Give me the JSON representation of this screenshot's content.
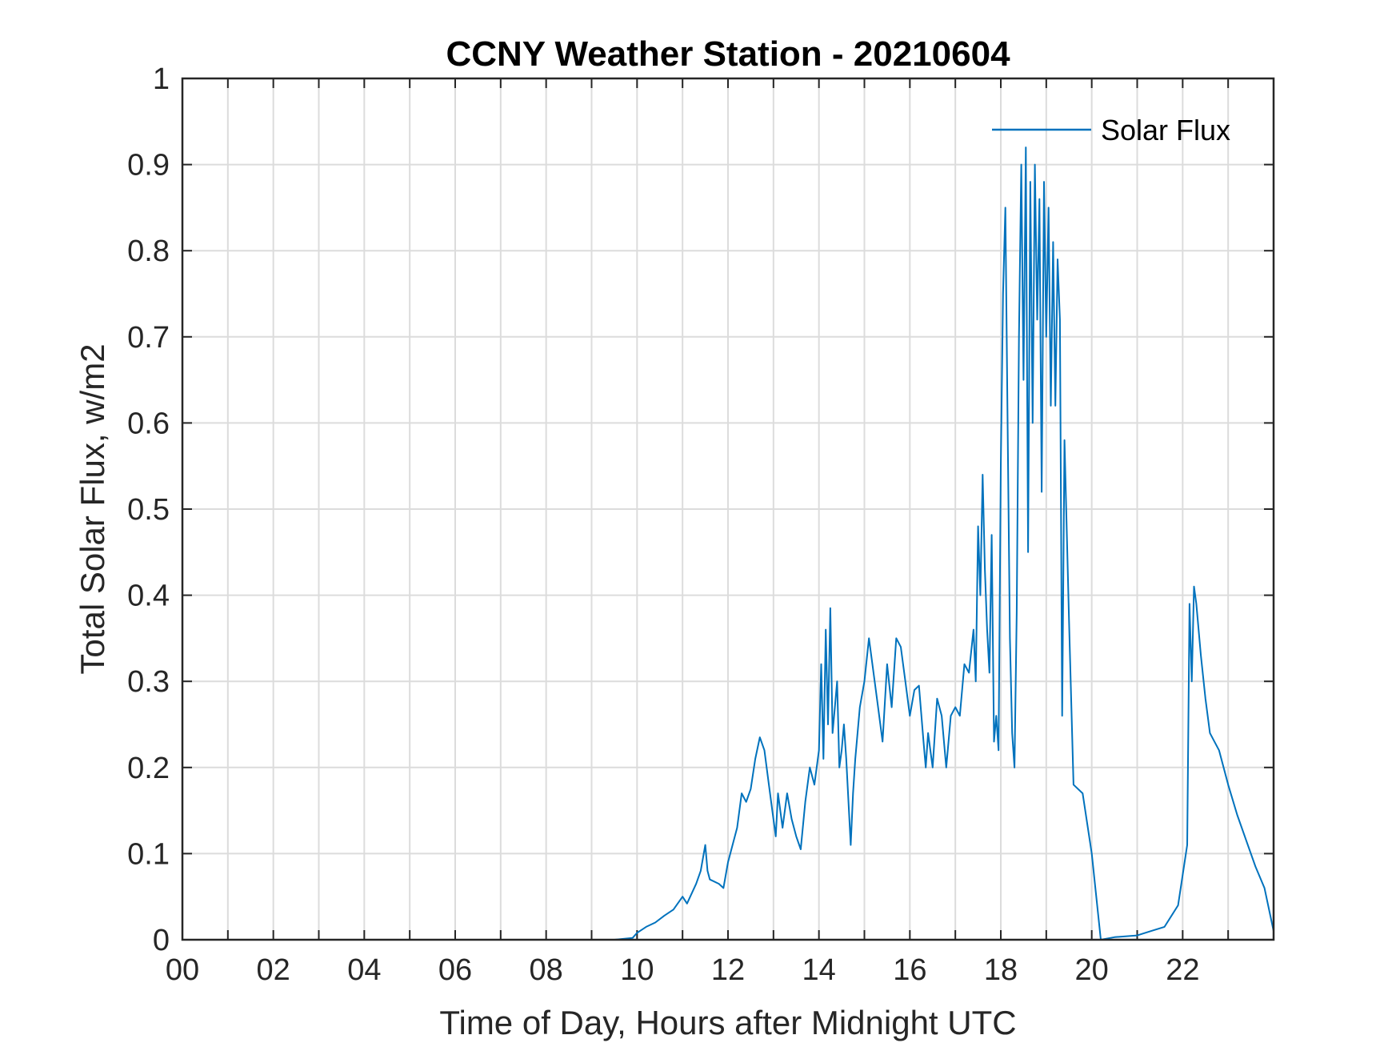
{
  "chart_data": {
    "type": "line",
    "title": "CCNY Weather Station - 20210604",
    "xlabel": "Time of Day, Hours after Midnight UTC",
    "ylabel": "Total Solar Flux, w/m2",
    "xlim": [
      0,
      24
    ],
    "ylim": [
      0,
      1
    ],
    "grid": true,
    "legend_position": "top-right",
    "x_ticks": [
      0,
      2,
      4,
      6,
      8,
      10,
      12,
      14,
      16,
      18,
      20,
      22
    ],
    "x_tick_labels": [
      "00",
      "02",
      "04",
      "06",
      "08",
      "10",
      "12",
      "14",
      "16",
      "18",
      "20",
      "22"
    ],
    "y_ticks": [
      0,
      0.1,
      0.2,
      0.3,
      0.4,
      0.5,
      0.6,
      0.7,
      0.8,
      0.9,
      1
    ],
    "y_tick_labels": [
      "0",
      "0.1",
      "0.2",
      "0.3",
      "0.4",
      "0.5",
      "0.6",
      "0.7",
      "0.8",
      "0.9",
      "1"
    ],
    "colors": {
      "series": "#0072BD"
    },
    "series": [
      {
        "name": "Solar Flux",
        "x": [
          0,
          9.5,
          9.9,
          10.0,
          10.2,
          10.4,
          10.6,
          10.8,
          11.0,
          11.1,
          11.3,
          11.4,
          11.5,
          11.55,
          11.6,
          11.8,
          11.9,
          12.0,
          12.1,
          12.2,
          12.3,
          12.4,
          12.5,
          12.6,
          12.7,
          12.8,
          12.9,
          13.0,
          13.05,
          13.1,
          13.2,
          13.3,
          13.4,
          13.5,
          13.6,
          13.7,
          13.8,
          13.9,
          14.0,
          14.05,
          14.1,
          14.15,
          14.2,
          14.25,
          14.3,
          14.35,
          14.4,
          14.45,
          14.5,
          14.55,
          14.6,
          14.7,
          14.75,
          14.8,
          14.9,
          15.0,
          15.1,
          15.2,
          15.3,
          15.4,
          15.5,
          15.6,
          15.7,
          15.8,
          15.9,
          16.0,
          16.1,
          16.2,
          16.3,
          16.35,
          16.4,
          16.5,
          16.6,
          16.7,
          16.8,
          16.9,
          17.0,
          17.1,
          17.2,
          17.3,
          17.4,
          17.45,
          17.5,
          17.55,
          17.6,
          17.65,
          17.7,
          17.75,
          17.8,
          17.85,
          17.9,
          17.95,
          18.0,
          18.05,
          18.1,
          18.15,
          18.2,
          18.25,
          18.3,
          18.35,
          18.4,
          18.45,
          18.5,
          18.55,
          18.6,
          18.65,
          18.7,
          18.75,
          18.8,
          18.85,
          18.9,
          18.95,
          19.0,
          19.05,
          19.1,
          19.15,
          19.2,
          19.25,
          19.3,
          19.35,
          19.4,
          19.5,
          19.6,
          19.8,
          20.0,
          20.2,
          20.5,
          21.0,
          21.3,
          21.6,
          21.9,
          22.0,
          22.1,
          22.15,
          22.2,
          22.25,
          22.3,
          22.4,
          22.5,
          22.6,
          22.8,
          23.0,
          23.2,
          23.4,
          23.6,
          23.8,
          24.0
        ],
        "values": [
          0,
          0,
          0.002,
          0.008,
          0.015,
          0.02,
          0.028,
          0.035,
          0.05,
          0.042,
          0.065,
          0.08,
          0.11,
          0.08,
          0.07,
          0.065,
          0.06,
          0.09,
          0.11,
          0.13,
          0.17,
          0.16,
          0.175,
          0.21,
          0.235,
          0.22,
          0.18,
          0.14,
          0.12,
          0.17,
          0.13,
          0.17,
          0.14,
          0.12,
          0.105,
          0.16,
          0.2,
          0.18,
          0.22,
          0.32,
          0.21,
          0.36,
          0.25,
          0.385,
          0.24,
          0.27,
          0.3,
          0.2,
          0.22,
          0.25,
          0.21,
          0.11,
          0.17,
          0.21,
          0.27,
          0.3,
          0.35,
          0.31,
          0.27,
          0.23,
          0.32,
          0.27,
          0.35,
          0.34,
          0.3,
          0.26,
          0.29,
          0.295,
          0.23,
          0.2,
          0.24,
          0.2,
          0.28,
          0.26,
          0.2,
          0.26,
          0.27,
          0.26,
          0.32,
          0.31,
          0.36,
          0.3,
          0.48,
          0.4,
          0.54,
          0.43,
          0.36,
          0.31,
          0.47,
          0.23,
          0.26,
          0.22,
          0.55,
          0.75,
          0.85,
          0.6,
          0.35,
          0.24,
          0.2,
          0.38,
          0.7,
          0.9,
          0.65,
          0.92,
          0.45,
          0.88,
          0.6,
          0.9,
          0.72,
          0.86,
          0.52,
          0.88,
          0.7,
          0.85,
          0.62,
          0.81,
          0.62,
          0.79,
          0.72,
          0.26,
          0.58,
          0.37,
          0.18,
          0.17,
          0.1,
          0.0,
          0.003,
          0.005,
          0.01,
          0.015,
          0.04,
          0.075,
          0.11,
          0.39,
          0.3,
          0.41,
          0.39,
          0.33,
          0.28,
          0.24,
          0.22,
          0.18,
          0.145,
          0.115,
          0.085,
          0.06,
          0.01
        ]
      }
    ]
  }
}
